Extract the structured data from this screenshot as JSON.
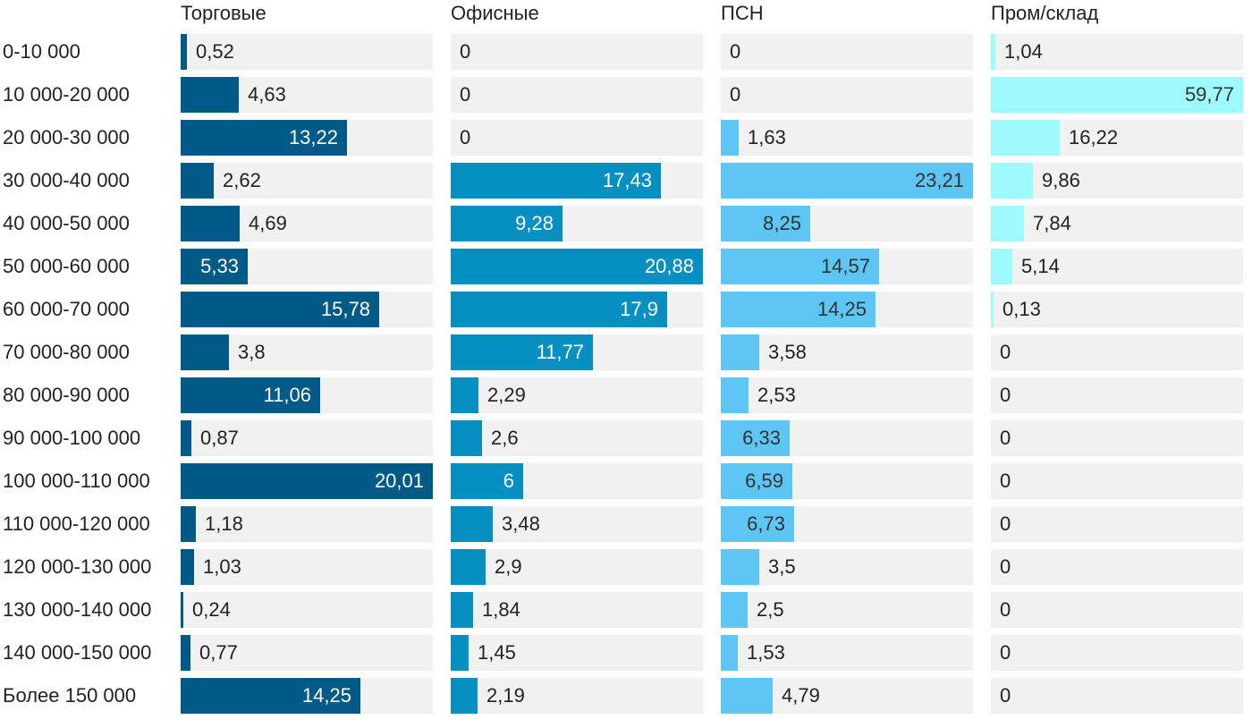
{
  "chart_data": {
    "type": "bar",
    "orientation": "horizontal",
    "layout": "small-multiples",
    "categories": [
      "0-10 000",
      "10 000-20 000",
      "20 000-30 000",
      "30 000-40 000",
      "40 000-50 000",
      "50 000-60 000",
      "60 000-70 000",
      "70 000-80 000",
      "80 000-90 000",
      "90 000-100 000",
      "100 000-110 000",
      "110 000-120 000",
      "120 000-130 000",
      "130 000-140 000",
      "140 000-150 000",
      "Более 150 000"
    ],
    "series": [
      {
        "name": "Торговые",
        "color": "#005a87",
        "label_color": "#ffffff",
        "max": 20.01,
        "values": [
          0.52,
          4.63,
          13.22,
          2.62,
          4.69,
          5.33,
          15.78,
          3.8,
          11.06,
          0.87,
          20.01,
          1.18,
          1.03,
          0.24,
          0.77,
          14.25
        ],
        "labels": [
          "0,52",
          "4,63",
          "13,22",
          "2,62",
          "4,69",
          "5,33",
          "15,78",
          "3,8",
          "11,06",
          "0,87",
          "20,01",
          "1,18",
          "1,03",
          "0,24",
          "0,77",
          "14,25"
        ]
      },
      {
        "name": "Офисные",
        "color": "#0590c1",
        "label_color": "#ffffff",
        "max": 20.88,
        "values": [
          0,
          0,
          0,
          17.43,
          9.28,
          20.88,
          17.9,
          11.77,
          2.29,
          2.6,
          6,
          3.48,
          2.9,
          1.84,
          1.45,
          2.19
        ],
        "labels": [
          "0",
          "0",
          "0",
          "17,43",
          "9,28",
          "20,88",
          "17,9",
          "11,77",
          "2,29",
          "2,6",
          "6",
          "3,48",
          "2,9",
          "1,84",
          "1,45",
          "2,19"
        ]
      },
      {
        "name": "ПСН",
        "color": "#5ec6f5",
        "label_color": "#333333",
        "max": 23.21,
        "values": [
          0,
          0,
          1.63,
          23.21,
          8.25,
          14.57,
          14.25,
          3.58,
          2.53,
          6.33,
          6.59,
          6.73,
          3.5,
          2.5,
          1.53,
          4.79
        ],
        "labels": [
          "0",
          "0",
          "1,63",
          "23,21",
          "8,25",
          "14,57",
          "14,25",
          "3,58",
          "2,53",
          "6,33",
          "6,59",
          "6,73",
          "3,5",
          "2,5",
          "1,53",
          "4,79"
        ]
      },
      {
        "name": "Пром/склад",
        "color": "#9dfbfd",
        "label_color": "#333333",
        "max": 59.77,
        "values": [
          1.04,
          59.77,
          16.22,
          9.86,
          7.84,
          5.14,
          0.13,
          0,
          0,
          0,
          0,
          0,
          0,
          0,
          0,
          0
        ],
        "labels": [
          "1,04",
          "59,77",
          "16,22",
          "9,86",
          "7,84",
          "5,14",
          "0,13",
          "0",
          "0",
          "0",
          "0",
          "0",
          "0",
          "0",
          "0",
          "0"
        ]
      }
    ],
    "title": "",
    "xlabel": "",
    "ylabel": ""
  }
}
